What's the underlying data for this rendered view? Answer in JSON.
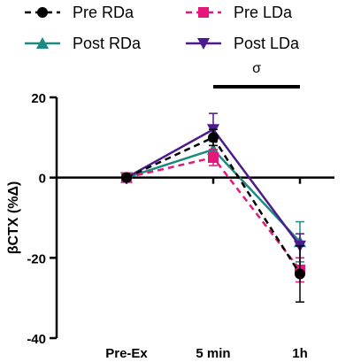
{
  "chart_data": {
    "type": "line",
    "categories": [
      "Pre-Ex",
      "5 min",
      "1h"
    ],
    "ylabel": "βCTX (%Δ)",
    "ylim": [
      -40,
      20
    ],
    "yticks": [
      "20",
      "0",
      "-20",
      "-40"
    ],
    "grid": false,
    "legend_position": "top",
    "series": [
      {
        "name": "Pre RDa",
        "values": [
          0,
          10,
          -24
        ],
        "error": [
          0,
          2,
          7
        ],
        "color": "#000000",
        "dashed": true,
        "marker": "circle"
      },
      {
        "name": "Pre LDa",
        "values": [
          0,
          5,
          -23
        ],
        "error": [
          0,
          2,
          3
        ],
        "color": "#e6177a",
        "dashed": true,
        "marker": "square"
      },
      {
        "name": "Post RDa",
        "values": [
          0,
          7,
          -16
        ],
        "error": [
          0,
          2,
          5
        ],
        "color": "#1a8a82",
        "dashed": false,
        "marker": "triangle-up"
      },
      {
        "name": "Post LDa",
        "values": [
          0,
          12,
          -17
        ],
        "error": [
          0,
          4,
          3
        ],
        "color": "#4b1a8c",
        "dashed": false,
        "marker": "triangle-down"
      }
    ],
    "annotations": [
      {
        "text": "σ",
        "from_category": "5 min",
        "to_category": "1h"
      }
    ]
  }
}
